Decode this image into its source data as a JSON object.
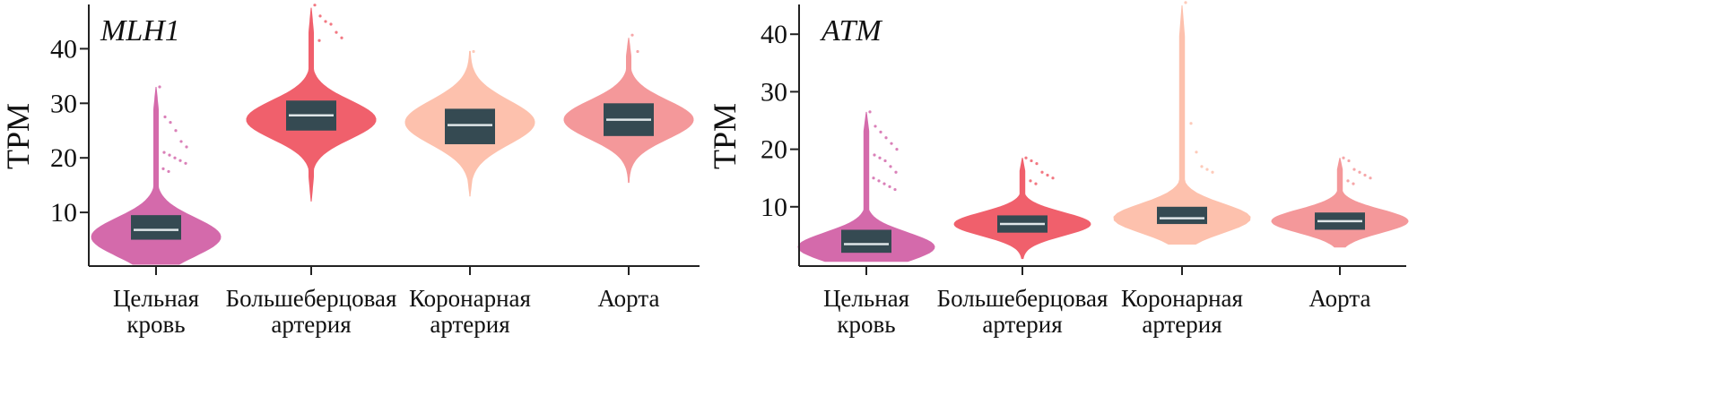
{
  "chart_data": [
    {
      "type": "violin",
      "title": "MLH1",
      "ylabel": "TPM",
      "xlabel": "",
      "ylim": [
        0,
        48
      ],
      "yticks": [
        10,
        20,
        30,
        40
      ],
      "categories": [
        {
          "lines": [
            "Цельная",
            "кровь"
          ],
          "color": "#d46aab",
          "q1": 5,
          "median": 6.8,
          "q3": 9.5,
          "min": 0.5,
          "max": 33,
          "mode": 5.5,
          "spread": 3.5,
          "outliers": [
            33,
            27.5,
            26.5,
            25,
            23,
            22,
            21,
            20.5,
            20,
            19.5,
            19,
            18,
            17.5
          ]
        },
        {
          "lines": [
            "Большеберцовая",
            "артерия"
          ],
          "color": "#f0606c",
          "q1": 25,
          "median": 27.8,
          "q3": 30.5,
          "min": 12,
          "max": 47.5,
          "mode": 27,
          "spread": 3.5,
          "outliers": [
            48,
            46,
            45,
            44.5,
            43,
            42,
            41.5
          ]
        },
        {
          "lines": [
            "Коронарная",
            "артерия"
          ],
          "color": "#fdc1ad",
          "q1": 22.5,
          "median": 26,
          "q3": 29,
          "min": 13,
          "max": 39.5,
          "mode": 26.5,
          "spread": 4,
          "outliers": [
            39.5
          ]
        },
        {
          "lines": [
            "Аорта"
          ],
          "color": "#f4989a",
          "q1": 24,
          "median": 27,
          "q3": 30,
          "min": 15.5,
          "max": 42,
          "mode": 27,
          "spread": 3.5,
          "outliers": [
            42.5,
            39.5
          ]
        }
      ]
    },
    {
      "type": "violin",
      "title": "ATM",
      "ylabel": "TPM",
      "xlabel": "",
      "ylim": [
        0,
        45
      ],
      "yticks": [
        10,
        20,
        30,
        40
      ],
      "categories": [
        {
          "lines": [
            "Цельная",
            "кровь"
          ],
          "color": "#d46aab",
          "q1": 2,
          "median": 3.5,
          "q3": 6,
          "min": 0.5,
          "max": 26.5,
          "mode": 3,
          "spread": 2.5,
          "outliers": [
            26.5,
            24,
            23,
            22,
            21,
            20,
            19,
            18.5,
            18,
            17,
            16,
            15,
            14.5,
            14,
            13.5,
            13
          ]
        },
        {
          "lines": [
            "Большеберцовая",
            "артерия"
          ],
          "color": "#f0606c",
          "q1": 5.5,
          "median": 7,
          "q3": 8.5,
          "min": 1,
          "max": 18.5,
          "mode": 7,
          "spread": 2,
          "outliers": [
            18.5,
            18,
            17.5,
            16,
            15.5,
            15,
            14.5,
            14
          ]
        },
        {
          "lines": [
            "Коронарная",
            "артерия"
          ],
          "color": "#fdc1ad",
          "q1": 7,
          "median": 8,
          "q3": 10,
          "min": 3.5,
          "max": 45,
          "mode": 8,
          "spread": 2.5,
          "outliers": [
            45.5,
            24.5,
            19.5,
            17,
            16.5,
            16
          ]
        },
        {
          "lines": [
            "Аорта"
          ],
          "color": "#f4989a",
          "q1": 6,
          "median": 7.5,
          "q3": 9,
          "min": 3,
          "max": 18.5,
          "mode": 7.5,
          "spread": 2,
          "outliers": [
            18.5,
            18,
            16.5,
            16,
            15.5,
            15,
            14.5,
            14
          ]
        }
      ]
    }
  ]
}
